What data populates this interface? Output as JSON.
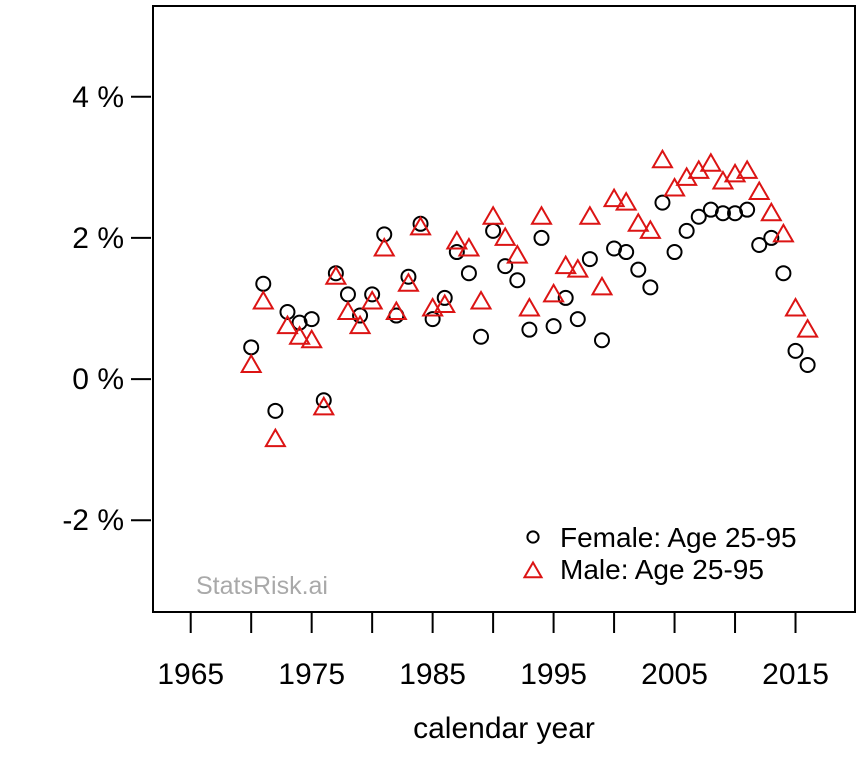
{
  "watermark": "StatsRisk.ai",
  "colors": {
    "female": "#000000",
    "male": "#dc1414",
    "axis": "#000000",
    "watermark": "#a9a9a9",
    "background": "#ffffff"
  },
  "chart_data": {
    "type": "scatter",
    "title": "",
    "xlabel": "calendar year",
    "ylabel": "",
    "xlim": [
      1961.8,
      2020.0
    ],
    "ylim": [
      -3.3,
      5.3
    ],
    "grid": false,
    "x_ticks": {
      "minor_start": 1965,
      "minor_end": 2015,
      "minor_step": 5,
      "labeled_values": [
        1965,
        1975,
        1985,
        1995,
        2005,
        2015
      ],
      "labels": [
        "1965",
        "1975",
        "1985",
        "1995",
        "2005",
        "2015"
      ]
    },
    "y_ticks": {
      "values": [
        -2,
        0,
        2,
        4
      ],
      "labels": [
        "-2 %",
        "0 %",
        "2 %",
        "4 %"
      ]
    },
    "legend": {
      "position": "bottom-right",
      "entries": [
        {
          "label": "Female: Age 25-95",
          "marker": "circle",
          "color": "#000000"
        },
        {
          "label": "Male: Age 25-95",
          "marker": "triangle",
          "color": "#dc1414"
        }
      ]
    },
    "x": [
      1970,
      1971,
      1972,
      1973,
      1974,
      1975,
      1976,
      1977,
      1978,
      1979,
      1980,
      1981,
      1982,
      1983,
      1984,
      1985,
      1986,
      1987,
      1988,
      1989,
      1990,
      1991,
      1992,
      1993,
      1994,
      1995,
      1996,
      1997,
      1998,
      1999,
      2000,
      2001,
      2002,
      2003,
      2004,
      2005,
      2006,
      2007,
      2008,
      2009,
      2010,
      2011,
      2012,
      2013,
      2014,
      2015,
      2016
    ],
    "series": [
      {
        "name": "Female: Age 25-95",
        "marker": "circle",
        "color": "#000000",
        "values": [
          0.45,
          1.35,
          -0.45,
          0.95,
          0.8,
          0.85,
          -0.3,
          1.5,
          1.2,
          0.9,
          1.2,
          2.05,
          0.9,
          1.45,
          2.2,
          0.85,
          1.15,
          1.8,
          1.5,
          0.6,
          2.1,
          1.6,
          1.4,
          0.7,
          2.0,
          0.75,
          1.15,
          0.85,
          1.7,
          0.55,
          1.85,
          1.8,
          1.55,
          1.3,
          2.5,
          1.8,
          2.1,
          2.3,
          2.4,
          2.35,
          2.35,
          2.4,
          1.9,
          2.0,
          1.5,
          0.4,
          0.2
        ]
      },
      {
        "name": "Male: Age 25-95",
        "marker": "triangle",
        "color": "#dc1414",
        "values": [
          0.2,
          1.1,
          -0.85,
          0.75,
          0.6,
          0.55,
          -0.4,
          1.45,
          0.95,
          0.75,
          1.1,
          1.85,
          0.95,
          1.35,
          2.15,
          1.0,
          1.05,
          1.95,
          1.85,
          1.1,
          2.3,
          2.0,
          1.75,
          1.0,
          2.3,
          1.2,
          1.6,
          1.55,
          2.3,
          1.3,
          2.55,
          2.5,
          2.2,
          2.1,
          3.1,
          2.7,
          2.85,
          2.95,
          3.05,
          2.8,
          2.9,
          2.95,
          2.65,
          2.35,
          2.05,
          1.0,
          0.7
        ]
      }
    ]
  }
}
